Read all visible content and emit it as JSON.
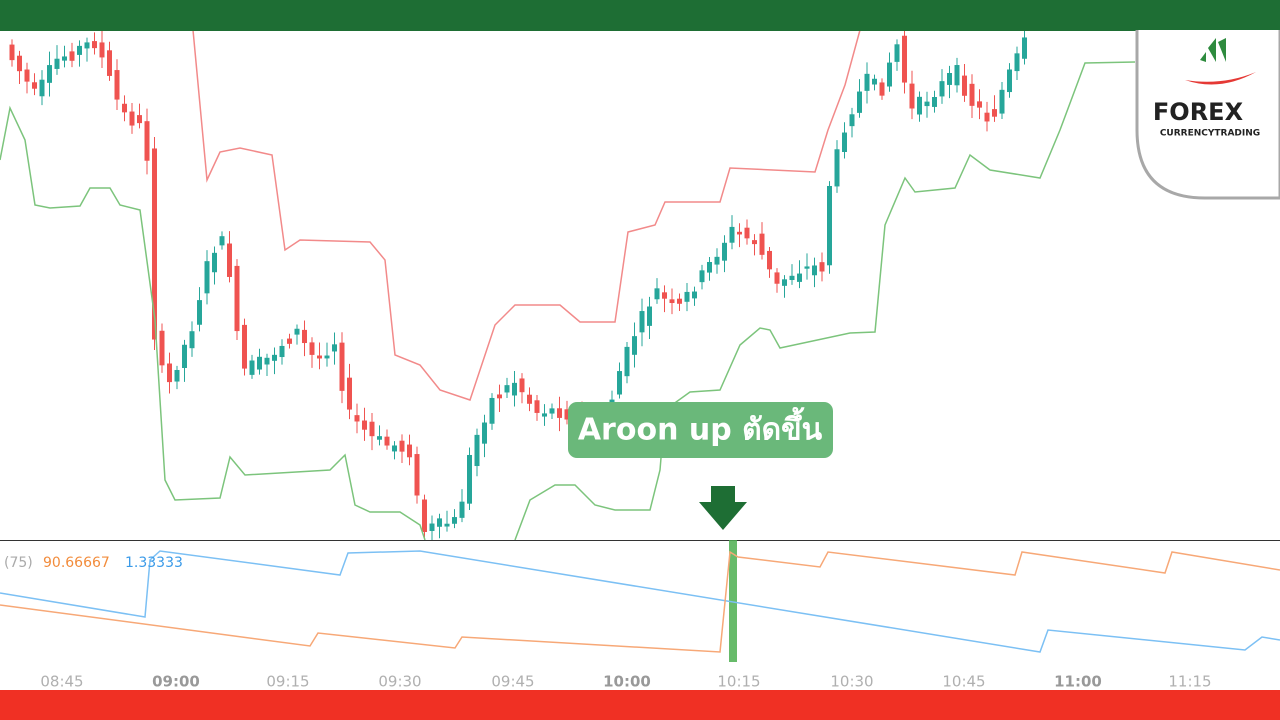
{
  "indicator": {
    "period": "(75)",
    "aroon_up": "90.66667",
    "aroon_down": "1.33333"
  },
  "callout": "Aroon up ตัดขึ้น",
  "time_axis": [
    "08:45",
    "09:00",
    "09:15",
    "09:30",
    "09:45",
    "10:00",
    "10:15",
    "10:30",
    "10:45",
    "11:00",
    "11:15"
  ],
  "logo": {
    "name": "FOREX",
    "tagline": "CURRENCYTRADING"
  }
}
